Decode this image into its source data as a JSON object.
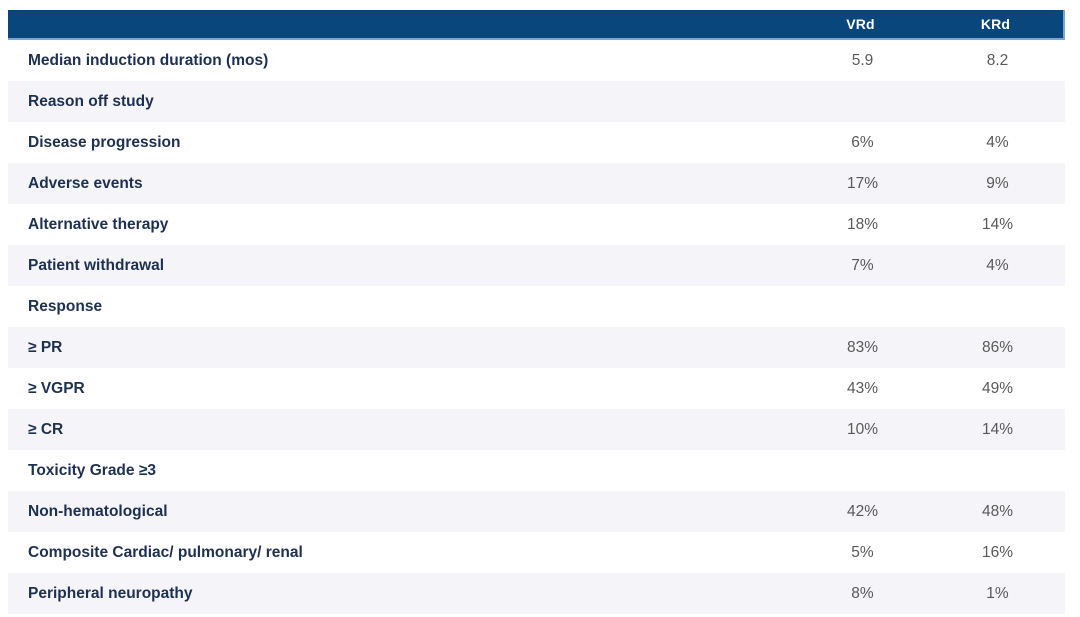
{
  "table": {
    "columns": [
      {
        "key": "vrd",
        "label": "VRd"
      },
      {
        "key": "krd",
        "label": "KRd"
      }
    ],
    "rows": [
      {
        "label": "Median induction duration (mos)",
        "vrd": "5.9",
        "krd": "8.2",
        "section_header": false
      },
      {
        "label": "Reason off study",
        "vrd": "",
        "krd": "",
        "section_header": true
      },
      {
        "label": "Disease progression",
        "vrd": "6%",
        "krd": "4%",
        "section_header": false
      },
      {
        "label": "Adverse events",
        "vrd": "17%",
        "krd": "9%",
        "section_header": false
      },
      {
        "label": "Alternative therapy",
        "vrd": "18%",
        "krd": "14%",
        "section_header": false
      },
      {
        "label": "Patient withdrawal",
        "vrd": "7%",
        "krd": "4%",
        "section_header": false
      },
      {
        "label": "Response",
        "vrd": "",
        "krd": "",
        "section_header": true
      },
      {
        "label": "≥ PR",
        "vrd": "83%",
        "krd": "86%",
        "section_header": false
      },
      {
        "label": "≥ VGPR",
        "vrd": "43%",
        "krd": "49%",
        "section_header": false
      },
      {
        "label": "≥ CR",
        "vrd": "10%",
        "krd": "14%",
        "section_header": false
      },
      {
        "label": "Toxicity Grade ≥3",
        "vrd": "",
        "krd": "",
        "section_header": true
      },
      {
        "label": "Non-hematological",
        "vrd": "42%",
        "krd": "48%",
        "section_header": false
      },
      {
        "label": "Composite Cardiac/ pulmonary/ renal",
        "vrd": "5%",
        "krd": "16%",
        "section_header": false
      },
      {
        "label": "Peripheral neuropathy",
        "vrd": "8%",
        "krd": "1%",
        "section_header": false
      }
    ]
  },
  "colors": {
    "header_background": "#08467c",
    "header_border": "#7da4c9",
    "header_text": "#ffffff",
    "row_label_text": "#1d3050",
    "value_text": "#595959",
    "stripe_background": "#f4f4f9",
    "row_background": "#ffffff"
  }
}
